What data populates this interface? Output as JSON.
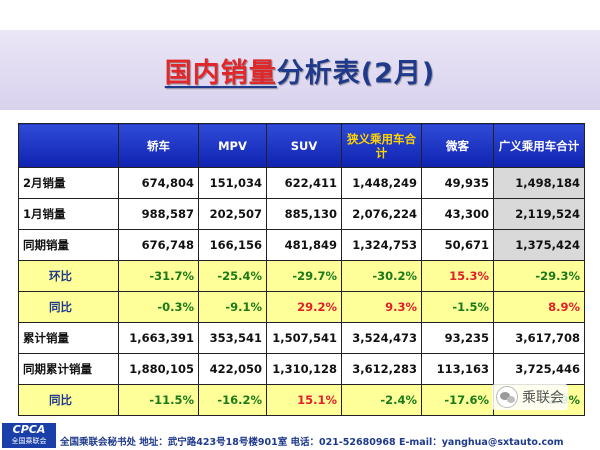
{
  "title": {
    "part1": "国内销量",
    "part2": "分析表(2月)"
  },
  "table": {
    "headers": [
      "",
      "轿车",
      "MPV",
      "SUV",
      "狭义乘用车合计",
      "微客",
      "广义乘用车合计"
    ],
    "rows": [
      {
        "label": "2月销量",
        "values": [
          "674,804",
          "151,034",
          "622,411",
          "1,448,249",
          "49,935",
          "1,498,184"
        ]
      },
      {
        "label": "1月销量",
        "values": [
          "988,587",
          "202,507",
          "885,130",
          "2,076,224",
          "43,300",
          "2,119,524"
        ]
      },
      {
        "label": "同期销量",
        "values": [
          "676,748",
          "166,156",
          "481,849",
          "1,324,753",
          "50,671",
          "1,375,424"
        ]
      },
      {
        "label": "环比",
        "values": [
          "-31.7%",
          "-25.4%",
          "-29.7%",
          "-30.2%",
          "15.3%",
          "-29.3%"
        ]
      },
      {
        "label": "同比",
        "values": [
          "-0.3%",
          "-9.1%",
          "29.2%",
          "9.3%",
          "-1.5%",
          "8.9%"
        ]
      },
      {
        "label": "累计销量",
        "values": [
          "1,663,391",
          "353,541",
          "1,507,541",
          "3,524,473",
          "93,235",
          "3,617,708"
        ]
      },
      {
        "label": "同期累计销量",
        "values": [
          "1,880,105",
          "422,050",
          "1,310,128",
          "3,612,283",
          "113,163",
          "3,725,446"
        ]
      },
      {
        "label": "同比",
        "values": [
          "-11.5%",
          "-16.2%",
          "15.1%",
          "-2.4%",
          "-17.6%",
          "-2.9%"
        ]
      }
    ]
  },
  "footer": {
    "logo_abbr": "CPCA",
    "logo_cn": "全国乘联会",
    "text": "全国乘联会秘书处 地址：武宁路423号18号楼901室 电话：021-52680968 E-mail：yanghua@sxtauto.com"
  },
  "watermark": {
    "text": "乘联会",
    "icon": "wechat-icon"
  },
  "colors": {
    "header_blue": "#0f22b0",
    "ratio_row_yellow": "#ffff99",
    "negative_green": "#1a7a1a",
    "positive_red": "#e0202a",
    "total_gray": "#d9d9d9"
  }
}
